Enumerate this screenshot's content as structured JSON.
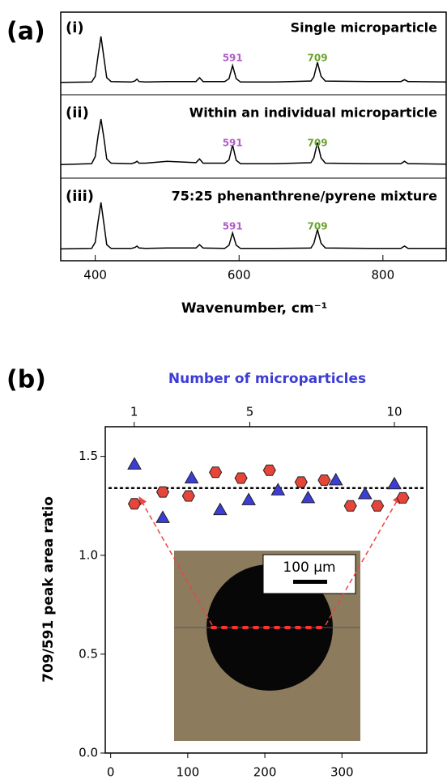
{
  "chart_data": [
    {
      "type": "line",
      "panel_label": "(a)",
      "xlabel": "Wavenumber, cm⁻¹",
      "xlim": [
        352,
        888
      ],
      "xticks": [
        400,
        600,
        800
      ],
      "x": [
        352,
        395,
        400,
        404,
        408,
        412,
        416,
        422,
        450,
        455,
        458,
        461,
        470,
        500,
        540,
        545,
        550,
        580,
        586,
        591,
        596,
        602,
        650,
        700,
        704,
        709,
        714,
        720,
        780,
        825,
        830,
        835,
        888
      ],
      "series": [
        {
          "label": "(i)",
          "name": "Single microparticle",
          "color": "#000000",
          "values": [
            0.02,
            0.03,
            0.15,
            0.6,
            1.0,
            0.55,
            0.12,
            0.04,
            0.03,
            0.05,
            0.09,
            0.04,
            0.03,
            0.04,
            0.04,
            0.12,
            0.04,
            0.04,
            0.1,
            0.38,
            0.1,
            0.03,
            0.03,
            0.05,
            0.14,
            0.45,
            0.15,
            0.05,
            0.04,
            0.04,
            0.08,
            0.04,
            0.03
          ]
        },
        {
          "label": "(ii)",
          "name": "Within an individual microparticle",
          "color": "#000000",
          "values": [
            0.03,
            0.05,
            0.2,
            0.65,
            1.0,
            0.6,
            0.15,
            0.06,
            0.05,
            0.07,
            0.1,
            0.06,
            0.06,
            0.1,
            0.07,
            0.15,
            0.06,
            0.06,
            0.13,
            0.45,
            0.12,
            0.05,
            0.05,
            0.07,
            0.17,
            0.5,
            0.17,
            0.06,
            0.05,
            0.05,
            0.1,
            0.05,
            0.04
          ]
        },
        {
          "label": "(iii)",
          "name": "75:25 phenanthrene/pyrene mixture",
          "color": "#000000",
          "values": [
            0.01,
            0.02,
            0.15,
            0.6,
            1.0,
            0.55,
            0.1,
            0.02,
            0.02,
            0.04,
            0.07,
            0.03,
            0.02,
            0.03,
            0.03,
            0.1,
            0.03,
            0.02,
            0.09,
            0.35,
            0.09,
            0.02,
            0.02,
            0.03,
            0.13,
            0.42,
            0.13,
            0.03,
            0.02,
            0.02,
            0.07,
            0.02,
            0.02
          ]
        }
      ],
      "peaks": [
        {
          "value": 591,
          "color": "#b05cc8"
        },
        {
          "value": 709,
          "color": "#6aa32e"
        }
      ]
    },
    {
      "type": "scatter",
      "panel_label": "(b)",
      "ylabel": "709/591 peak area ratio",
      "x2label": "Number of microparticles",
      "xlim": [
        -7,
        410
      ],
      "xticks": [
        0,
        100,
        200,
        300
      ],
      "x2lim": [
        0,
        11.12
      ],
      "x2ticks": [
        1,
        5,
        10
      ],
      "ylim": [
        0,
        1.65
      ],
      "yticks": [
        {
          "value": 0,
          "label": "0.0"
        },
        0.5,
        {
          "value": 1,
          "label": "1.0"
        },
        1.5
      ],
      "hline": 1.34,
      "inset_scale_label": "100 µm",
      "series": [
        {
          "marker": "triangle",
          "color": "#3c3cd6",
          "x": [
            30.8,
            67.6,
            105,
            142,
            179,
            217,
            256,
            292,
            330,
            368
          ],
          "values": [
            1.46,
            1.19,
            1.39,
            1.23,
            1.28,
            1.33,
            1.29,
            1.38,
            1.31,
            1.36
          ]
        },
        {
          "marker": "hexagon",
          "color": "#e8453a",
          "x": [
            30.8,
            67.6,
            101,
            136,
            169,
            206,
            247,
            277,
            311,
            346,
            379
          ],
          "values": [
            1.26,
            1.32,
            1.3,
            1.42,
            1.39,
            1.43,
            1.37,
            1.38,
            1.25,
            1.25,
            1.29
          ]
        }
      ]
    }
  ]
}
